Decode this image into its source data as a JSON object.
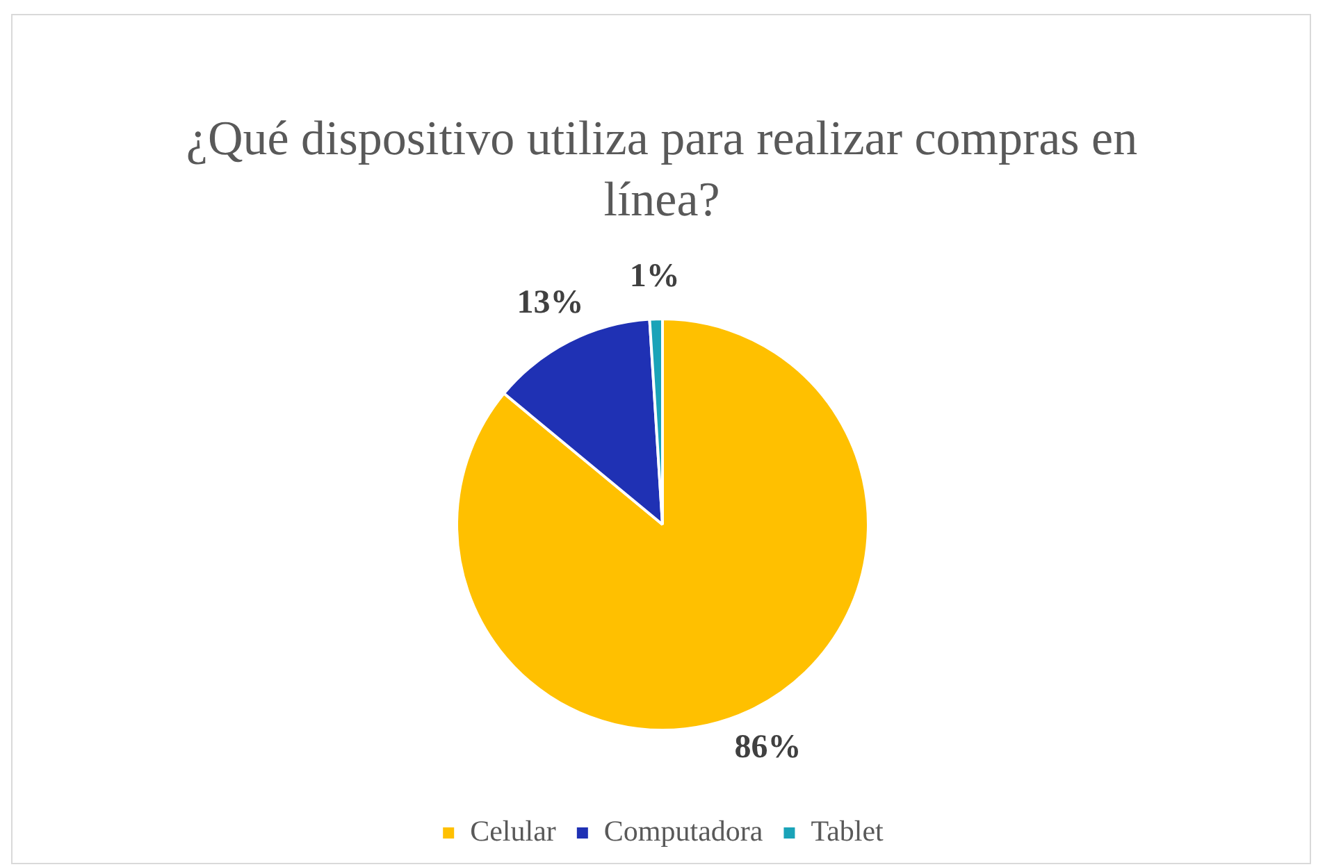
{
  "chart_data": {
    "type": "pie",
    "title": "¿Qué dispositivo utiliza para realizar compras en línea?",
    "categories": [
      "Celular",
      "Computadora",
      "Tablet"
    ],
    "values": [
      86,
      13,
      1
    ],
    "colors": [
      "#ffc000",
      "#1f31b4",
      "#1aa3b8"
    ],
    "value_labels": [
      "86%",
      "13%",
      "1%"
    ],
    "legend": "bottom"
  }
}
